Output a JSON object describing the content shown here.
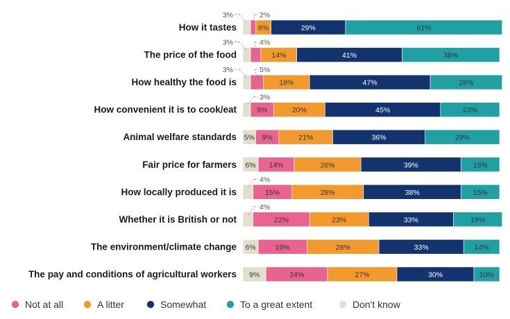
{
  "chart_data": {
    "type": "bar",
    "orientation": "horizontal",
    "stacked": true,
    "unit": "%",
    "categories": [
      "How it tastes",
      "The price of the food",
      "How healthy the food is",
      "How convenient it is to cook/eat",
      "Animal welfare standards",
      "Fair price for farmers",
      "How locally produced it is",
      "Whether it is British or not",
      "The environment/climate change",
      "The pay and conditions of agricultural workers"
    ],
    "series": [
      {
        "name": "Don't know",
        "color": "#e2dfcc",
        "text_color": "#333333",
        "values": [
          3,
          3,
          3,
          3,
          5,
          6,
          4,
          4,
          6,
          9
        ],
        "display": [
          "",
          "",
          "",
          "",
          "5%",
          "6%",
          "",
          "",
          "6%",
          "9%"
        ],
        "callouts": [
          "3%",
          "3%",
          "3%",
          "",
          "",
          "",
          "",
          "",
          "",
          ""
        ]
      },
      {
        "name": "Not at all",
        "color": "#e8638f",
        "text_color": "#333333",
        "values": [
          2,
          4,
          5,
          9,
          9,
          14,
          15,
          22,
          19,
          24
        ],
        "display": [
          "",
          "",
          "",
          "9%",
          "9%",
          "14%",
          "15%",
          "22%",
          "19%",
          "24%"
        ],
        "callouts": [
          "2%",
          "4%",
          "5%",
          "",
          "",
          "",
          "",
          "",
          "",
          ""
        ]
      },
      {
        "name": "A litter",
        "color": "#f29a2e",
        "text_color": "#333333",
        "values": [
          6,
          14,
          18,
          20,
          21,
          26,
          28,
          23,
          28,
          27
        ],
        "display": [
          "6%",
          "14%",
          "18%",
          "20%",
          "21%",
          "26%",
          "28%",
          "23%",
          "28%",
          "27%"
        ],
        "callouts": [
          "",
          "",
          "",
          "",
          "",
          "",
          "",
          "",
          "",
          ""
        ]
      },
      {
        "name": "Somewhat",
        "color": "#12336e",
        "text_color": "#ffffff",
        "values": [
          29,
          41,
          47,
          45,
          36,
          39,
          38,
          33,
          33,
          30
        ],
        "display": [
          "29%",
          "41%",
          "47%",
          "45%",
          "36%",
          "39%",
          "38%",
          "33%",
          "33%",
          "30%"
        ],
        "callouts": [
          "",
          "",
          "",
          "",
          "",
          "",
          "",
          "",
          "",
          ""
        ]
      },
      {
        "name": "To a great extent",
        "color": "#21a0a4",
        "text_color": "#333333",
        "values": [
          61,
          38,
          28,
          23,
          29,
          15,
          15,
          19,
          14,
          10
        ],
        "display": [
          "61%",
          "38%",
          "28%",
          "23%",
          "29%",
          "15%",
          "15%",
          "19%",
          "14%",
          "10%"
        ],
        "callouts": [
          "",
          "",
          "",
          "",
          "",
          "",
          "",
          "",
          "",
          ""
        ]
      }
    ],
    "extra_callouts": [
      "",
      "",
      "",
      "3%",
      "",
      "",
      "4%",
      "4%",
      "",
      ""
    ],
    "legend": {
      "placement": "bottom",
      "order": [
        "Not at all",
        "A litter",
        "Somewhat",
        "To a great extent",
        "Don't know"
      ]
    },
    "xlim": [
      0,
      100
    ],
    "grid": false
  }
}
